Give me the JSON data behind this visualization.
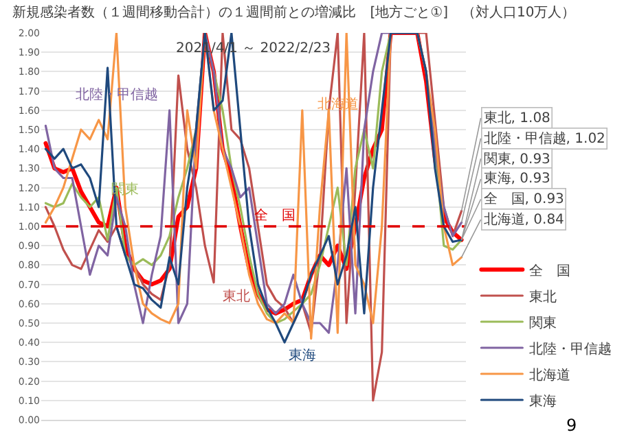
{
  "chart_data": {
    "type": "line",
    "title": "新規感染者数（１週間移動合計）の１週間前との増減比　[地方ごと①]　（対人口10万人）",
    "subtitle": "2021/4/1 ～ 2022/2/23",
    "categories": [
      null,
      null,
      null,
      null,
      null,
      null,
      null,
      null,
      null,
      null,
      null,
      null,
      null,
      null,
      null,
      null,
      null,
      null,
      null,
      null,
      null,
      null,
      null,
      null,
      null,
      null,
      null,
      null,
      null,
      null,
      null,
      null,
      null,
      null,
      null,
      null,
      null,
      null,
      null,
      null,
      null,
      null,
      null,
      null,
      null,
      null,
      null,
      null
    ],
    "ylim": [
      0,
      2
    ],
    "yticks": [
      {
        "value": 0,
        "label": "0.00"
      },
      {
        "value": 0.1,
        "label": "0.10"
      },
      {
        "value": 0.2,
        "label": "0.20"
      },
      {
        "value": 0.3,
        "label": "0.30"
      },
      {
        "value": 0.4,
        "label": "0.40"
      },
      {
        "value": 0.5,
        "label": "0.50"
      },
      {
        "value": 0.6,
        "label": "0.60"
      },
      {
        "value": 0.7,
        "label": "0.70"
      },
      {
        "value": 0.8,
        "label": "0.80"
      },
      {
        "value": 0.9,
        "label": "0.90"
      },
      {
        "value": 1,
        "label": "1.00"
      },
      {
        "value": 1.1,
        "label": "1.10"
      },
      {
        "value": 1.2,
        "label": "1.20"
      },
      {
        "value": 1.3,
        "label": "1.30"
      },
      {
        "value": 1.4,
        "label": "1.40"
      },
      {
        "value": 1.5,
        "label": "1.50"
      },
      {
        "value": 1.6,
        "label": "1.60"
      },
      {
        "value": 1.7,
        "label": "1.70"
      },
      {
        "value": 1.8,
        "label": "1.80"
      },
      {
        "value": 1.9,
        "label": "1.90"
      },
      {
        "value": 2,
        "label": "2.00"
      }
    ],
    "tick_labels": "y",
    "grid": "y",
    "legend": "bottom right",
    "ref_lines": [
      {
        "axis": "y",
        "value": 1,
        "label": "全　国",
        "color": "#e00000",
        "line_style": "dashed"
      }
    ],
    "series": [
      {
        "name": "全　国",
        "color": "#ff0000",
        "values": [
          1.43,
          1.3,
          1.28,
          1.3,
          1.18,
          1.1,
          1.02,
          1.0,
          1.2,
          0.9,
          0.78,
          0.72,
          0.7,
          0.72,
          0.78,
          1.05,
          1.1,
          1.3,
          2.0,
          1.8,
          1.4,
          1.25,
          1.0,
          0.78,
          0.65,
          0.57,
          0.55,
          0.57,
          0.6,
          0.62,
          0.75,
          0.85,
          0.8,
          0.9,
          0.78,
          1.0,
          1.25,
          1.4,
          1.5,
          2.0,
          2.0,
          2.0,
          2.0,
          1.75,
          1.35,
          1.05,
          0.97,
          0.93
        ]
      },
      {
        "name": "東北",
        "color": "#c0504d",
        "values": [
          1.1,
          1.0,
          0.88,
          0.8,
          0.78,
          0.88,
          0.98,
          0.92,
          1.0,
          0.85,
          0.8,
          0.7,
          0.65,
          0.62,
          0.8,
          1.78,
          1.4,
          1.2,
          0.9,
          0.71,
          2.0,
          1.5,
          1.45,
          1.3,
          1.0,
          0.7,
          0.62,
          0.58,
          0.5,
          0.6,
          0.45,
          0.85,
          1.6,
          2.0,
          0.5,
          1.2,
          2.0,
          0.1,
          0.35,
          2.0,
          2.0,
          2.0,
          2.0,
          2.0,
          1.55,
          1.1,
          0.95,
          1.08
        ]
      },
      {
        "name": "関東",
        "color": "#9bbb59",
        "values": [
          1.12,
          1.1,
          1.12,
          1.22,
          1.15,
          1.1,
          1.15,
          0.93,
          1.2,
          0.85,
          0.8,
          0.83,
          0.8,
          0.85,
          0.95,
          1.15,
          1.3,
          1.5,
          2.0,
          1.8,
          1.6,
          1.3,
          1.1,
          0.85,
          0.65,
          0.55,
          0.5,
          0.52,
          0.56,
          0.6,
          0.65,
          0.8,
          1.0,
          1.2,
          0.8,
          1.3,
          1.5,
          1.3,
          1.8,
          2.0,
          null,
          null,
          2.0,
          1.8,
          1.4,
          0.9,
          0.88,
          0.93
        ]
      },
      {
        "name": "北陸・甲信越",
        "color": "#8064a2",
        "values": [
          1.52,
          1.3,
          1.25,
          1.25,
          1.0,
          0.75,
          0.9,
          0.85,
          1.15,
          1.0,
          0.7,
          0.5,
          0.75,
          0.95,
          1.6,
          0.5,
          0.6,
          1.5,
          2.0,
          1.8,
          1.4,
          1.3,
          1.15,
          1.2,
          0.9,
          0.6,
          0.55,
          0.6,
          0.75,
          0.6,
          0.5,
          0.5,
          0.45,
          0.8,
          1.3,
          0.55,
          1.5,
          1.8,
          2.0,
          2.0,
          2.0,
          2.0,
          2.0,
          1.8,
          1.4,
          1.1,
          0.95,
          1.02
        ]
      },
      {
        "name": "北海道",
        "color": "#f79646",
        "values": [
          1.02,
          1.1,
          1.2,
          1.35,
          1.5,
          1.45,
          1.55,
          1.45,
          2.0,
          1.1,
          0.8,
          0.6,
          0.55,
          0.52,
          0.5,
          0.6,
          1.6,
          1.3,
          2.0,
          1.6,
          1.4,
          1.2,
          1.0,
          0.75,
          0.6,
          0.52,
          0.5,
          0.55,
          0.5,
          1.6,
          0.42,
          1.1,
          1.6,
          0.45,
          2.0,
          0.8,
          0.7,
          0.5,
          1.0,
          2.0,
          null,
          null,
          2.0,
          1.8,
          1.5,
          1.0,
          0.8,
          0.84
        ]
      },
      {
        "name": "東海",
        "color": "#1f497d",
        "values": [
          1.4,
          1.35,
          1.4,
          1.3,
          1.32,
          1.25,
          1.1,
          1.82,
          1.0,
          0.85,
          0.7,
          0.68,
          0.62,
          0.58,
          0.84,
          0.7,
          1.2,
          1.5,
          2.0,
          1.6,
          1.65,
          2.0,
          1.5,
          1.0,
          0.7,
          0.58,
          0.5,
          0.4,
          0.5,
          0.6,
          0.75,
          0.85,
          0.95,
          0.7,
          0.85,
          1.1,
          0.55,
          1.2,
          1.6,
          2.0,
          2.0,
          2.0,
          2.0,
          1.8,
          1.3,
          1.0,
          0.92,
          0.93
        ]
      }
    ],
    "annotations": [
      "北陸・甲信越",
      "関東",
      "東北",
      "東海",
      "北海道",
      "東北, 1.08",
      "北陸・甲信越, 1.02",
      "関東, 0.93",
      "東海, 0.93",
      "全　国, 0.93",
      "北海道, 0.84",
      "9"
    ]
  }
}
